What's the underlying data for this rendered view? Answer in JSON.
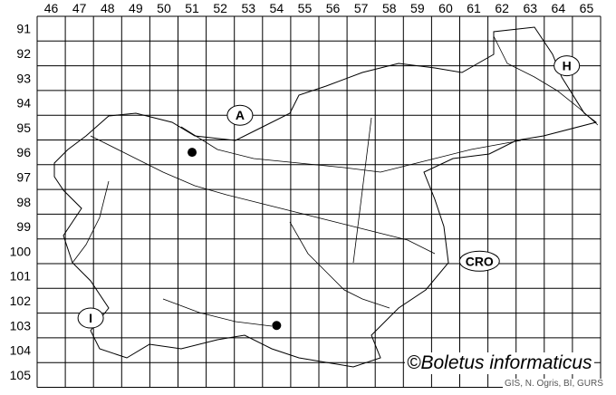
{
  "map": {
    "grid_columns": [
      "46",
      "47",
      "48",
      "49",
      "50",
      "51",
      "52",
      "53",
      "54",
      "55",
      "56",
      "57",
      "58",
      "59",
      "60",
      "61",
      "62",
      "63",
      "64",
      "65"
    ],
    "grid_rows": [
      "91",
      "92",
      "93",
      "94",
      "95",
      "96",
      "97",
      "98",
      "99",
      "100",
      "101",
      "102",
      "103",
      "104",
      "105"
    ],
    "country_labels": [
      {
        "code": "A",
        "col": 52.7,
        "row": 94.5
      },
      {
        "code": "H",
        "col": 64.3,
        "row": 92.5
      },
      {
        "code": "CRO",
        "col": 61.2,
        "row": 100.4
      },
      {
        "code": "I",
        "col": 47.4,
        "row": 102.7
      }
    ],
    "records": [
      {
        "col": 51,
        "row": 96
      },
      {
        "col": 54,
        "row": 103
      }
    ],
    "colors": {
      "grid": "#000000",
      "outline": "#000000",
      "rivers": "#000000",
      "record_dot": "#000000"
    }
  },
  "credit": "©Boletus informaticus",
  "source": "GIS, N. Ogris, BI, GURS"
}
